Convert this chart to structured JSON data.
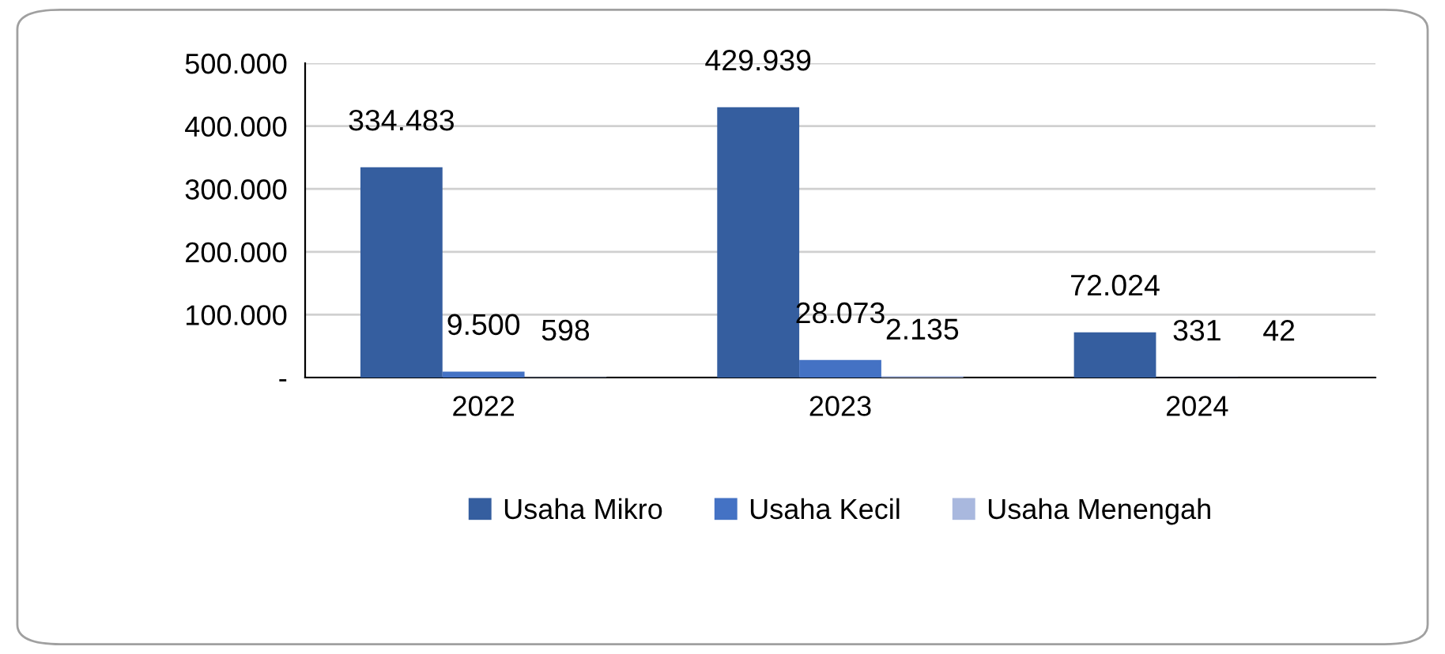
{
  "chart_data": {
    "type": "bar",
    "categories": [
      "2022",
      "2023",
      "2024"
    ],
    "series": [
      {
        "name": "Usaha Mikro",
        "color": "#355e9f",
        "values": [
          334483,
          429939,
          72024
        ],
        "value_labels": [
          "334.483",
          "429.939",
          "72.024"
        ]
      },
      {
        "name": "Usaha Kecil",
        "color": "#4472c4",
        "values": [
          9500,
          28073,
          331
        ],
        "value_labels": [
          "9.500",
          "28.073",
          "331"
        ]
      },
      {
        "name": "Usaha Menengah",
        "color": "#a9b8de",
        "values": [
          598,
          2135,
          42
        ],
        "value_labels": [
          "598",
          "2.135",
          "42"
        ]
      }
    ],
    "ylim": [
      0,
      500000
    ],
    "yticks": [
      {
        "value": 0,
        "label": "-"
      },
      {
        "value": 100000,
        "label": "100.000"
      },
      {
        "value": 200000,
        "label": "200.000"
      },
      {
        "value": 300000,
        "label": "300.000"
      },
      {
        "value": 400000,
        "label": "400.000"
      },
      {
        "value": 500000,
        "label": "500.000"
      }
    ],
    "grid": "y",
    "legend": "bottom"
  }
}
